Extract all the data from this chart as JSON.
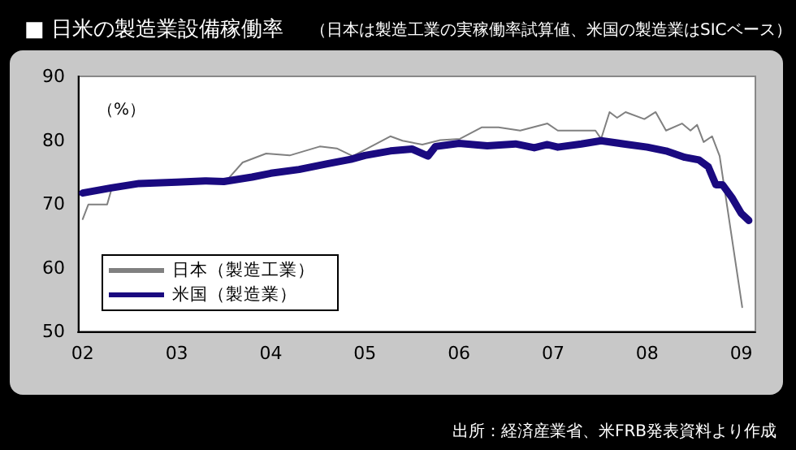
{
  "chart_data": {
    "type": "line",
    "title": "■ 日米の製造業設備稼働率",
    "subtitle": "（日本は製造工業の実稼働率試算値、米国の製造業はSICベース）",
    "ylabel": "（%）",
    "annotations": [
      "出所：経済産業省、米FRB発表資料より作成"
    ],
    "xlim": [
      2001.95,
      2009.15
    ],
    "xticks": [
      {
        "value": 2002,
        "label": "02"
      },
      {
        "value": 2003,
        "label": "03"
      },
      {
        "value": 2004,
        "label": "04"
      },
      {
        "value": 2005,
        "label": "05"
      },
      {
        "value": 2006,
        "label": "06"
      },
      {
        "value": 2007,
        "label": "07"
      },
      {
        "value": 2008,
        "label": "08"
      },
      {
        "value": 2009,
        "label": "09"
      }
    ],
    "ylim": [
      50,
      90
    ],
    "yticks": [
      50,
      60,
      70,
      80,
      90
    ],
    "grid": false,
    "legend": "bottom left",
    "marker": "none",
    "line_style": "solid",
    "series": [
      {
        "name": "日本（製造工業）",
        "color": "#808080",
        "x": [
          2002.0,
          2002.06,
          2002.26,
          2002.31,
          2002.5,
          2003.0,
          2003.3,
          2003.55,
          2003.7,
          2003.95,
          2004.2,
          2004.52,
          2004.7,
          2004.87,
          2005.0,
          2005.27,
          2005.4,
          2005.61,
          2005.8,
          2006.01,
          2006.24,
          2006.42,
          2006.65,
          2006.94,
          2007.05,
          2007.45,
          2007.51,
          2007.6,
          2007.68,
          2007.77,
          2007.97,
          2008.09,
          2008.2,
          2008.37,
          2008.46,
          2008.53,
          2008.6,
          2008.69,
          2008.77,
          2009.01
        ],
        "values": [
          67.6,
          69.9,
          69.9,
          72.5,
          72.9,
          73.3,
          73.5,
          74.0,
          76.5,
          77.9,
          77.6,
          79.0,
          78.7,
          77.5,
          78.5,
          80.6,
          79.9,
          79.3,
          80.0,
          80.2,
          82.0,
          82.0,
          81.5,
          82.6,
          81.5,
          81.5,
          80.2,
          84.4,
          83.5,
          84.4,
          83.3,
          84.4,
          81.5,
          82.6,
          81.5,
          82.4,
          79.7,
          80.6,
          77.5,
          53.8
        ]
      },
      {
        "name": "米国（製造業）",
        "color": "#1a0a80",
        "x": [
          2002.0,
          2002.3,
          2002.6,
          2003.0,
          2003.3,
          2003.5,
          2003.8,
          2004.0,
          2004.3,
          2004.6,
          2004.85,
          2005.0,
          2005.27,
          2005.5,
          2005.67,
          2005.75,
          2006.0,
          2006.3,
          2006.6,
          2006.8,
          2006.94,
          2007.05,
          2007.3,
          2007.51,
          2007.8,
          2008.0,
          2008.2,
          2008.4,
          2008.55,
          2008.65,
          2008.73,
          2008.8,
          2008.9,
          2009.0,
          2009.08
        ],
        "values": [
          71.7,
          72.5,
          73.2,
          73.4,
          73.6,
          73.5,
          74.2,
          74.8,
          75.4,
          76.3,
          77.0,
          77.6,
          78.3,
          78.6,
          77.5,
          79.0,
          79.5,
          79.1,
          79.4,
          78.8,
          79.3,
          78.9,
          79.4,
          79.9,
          79.3,
          78.9,
          78.3,
          77.3,
          76.9,
          75.8,
          73.0,
          73.0,
          71.0,
          68.5,
          67.4
        ]
      }
    ]
  }
}
